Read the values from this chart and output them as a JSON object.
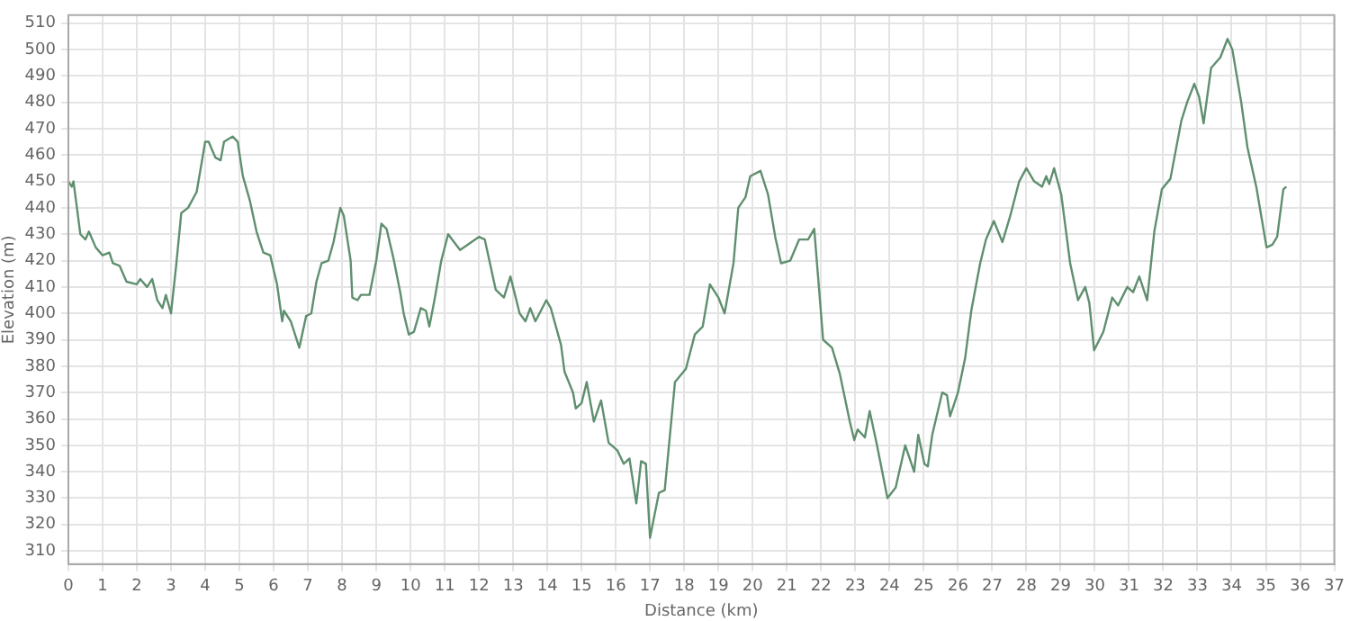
{
  "chart_data": {
    "type": "line",
    "xlabel": "Distance (km)",
    "ylabel": "Elevation (m)",
    "xlim": [
      0,
      37
    ],
    "xticks": [
      0,
      1,
      2,
      3,
      4,
      5,
      6,
      7,
      8,
      9,
      10,
      11,
      12,
      13,
      14,
      15,
      16,
      17,
      18,
      19,
      20,
      21,
      22,
      23,
      24,
      25,
      26,
      27,
      28,
      29,
      30,
      31,
      32,
      33,
      34,
      35,
      36,
      37
    ],
    "ylim": [
      305,
      513
    ],
    "yticks": [
      310,
      320,
      330,
      340,
      350,
      360,
      370,
      380,
      390,
      400,
      410,
      420,
      430,
      440,
      450,
      460,
      470,
      480,
      490,
      500,
      510
    ],
    "grid": true,
    "legend": false,
    "marker": "none",
    "line_style": "solid",
    "series": [
      {
        "color": "#5f8f6f",
        "x": [
          0,
          0.1,
          0.15,
          0.25,
          0.35,
          0.5,
          0.6,
          0.8,
          1.0,
          1.2,
          1.3,
          1.5,
          1.7,
          2.0,
          2.1,
          2.3,
          2.45,
          2.6,
          2.75,
          2.85,
          3.0,
          3.15,
          3.3,
          3.5,
          3.75,
          4.0,
          4.1,
          4.3,
          4.45,
          4.55,
          4.8,
          4.95,
          5.1,
          5.3,
          5.5,
          5.7,
          5.9,
          6.1,
          6.25,
          6.3,
          6.5,
          6.75,
          6.95,
          7.1,
          7.25,
          7.4,
          7.6,
          7.75,
          7.95,
          8.05,
          8.25,
          8.3,
          8.45,
          8.55,
          8.8,
          9.0,
          9.15,
          9.3,
          9.5,
          9.7,
          9.8,
          9.95,
          10.1,
          10.3,
          10.45,
          10.55,
          10.7,
          10.9,
          11.1,
          11.45,
          12.0,
          12.17,
          12.49,
          12.73,
          12.92,
          13.19,
          13.36,
          13.5,
          13.65,
          13.97,
          14.1,
          14.4,
          14.5,
          14.75,
          14.83,
          15.0,
          15.15,
          15.36,
          15.57,
          15.79,
          16.05,
          16.23,
          16.4,
          16.6,
          16.74,
          16.88,
          17.0,
          17.26,
          17.43,
          17.73,
          18.05,
          18.31,
          18.54,
          18.75,
          19.0,
          19.18,
          19.44,
          19.58,
          19.79,
          19.93,
          20.23,
          20.45,
          20.66,
          20.83,
          21.1,
          21.36,
          21.62,
          21.8,
          22.06,
          22.32,
          22.55,
          22.84,
          22.97,
          23.07,
          23.28,
          23.42,
          23.62,
          23.94,
          24.18,
          24.46,
          24.72,
          24.84,
          25.02,
          25.12,
          25.25,
          25.54,
          25.68,
          25.77,
          26.0,
          26.21,
          26.39,
          26.65,
          26.82,
          27.05,
          27.3,
          27.53,
          27.79,
          28.0,
          28.23,
          28.46,
          28.58,
          28.67,
          28.81,
          29.02,
          29.28,
          29.51,
          29.72,
          29.84,
          29.98,
          30.25,
          30.51,
          30.68,
          30.95,
          31.12,
          31.3,
          31.53,
          31.74,
          31.96,
          32.21,
          32.53,
          32.7,
          32.91,
          33.05,
          33.18,
          33.4,
          33.67,
          33.88,
          34.02,
          34.28,
          34.46,
          34.72,
          34.89,
          35.02,
          35.19,
          35.33,
          35.51,
          35.6
        ],
        "values": [
          450,
          448,
          450,
          440,
          430,
          428,
          431,
          425,
          422,
          423,
          419,
          418,
          412,
          411,
          413,
          410,
          413,
          405,
          402,
          407,
          400,
          418,
          438,
          440,
          446,
          465,
          465,
          459,
          458,
          465,
          467,
          465,
          452,
          443,
          431,
          423,
          422,
          411,
          397,
          401,
          397,
          387,
          399,
          400,
          412,
          419,
          420,
          427,
          440,
          437,
          420,
          406,
          405,
          407,
          407,
          420,
          434,
          432,
          421,
          408,
          400,
          392,
          393,
          402,
          401,
          395,
          405,
          420,
          430,
          424,
          429,
          428,
          409,
          406,
          414,
          400,
          397,
          402,
          397,
          405,
          402,
          388,
          378,
          370,
          364,
          366,
          374,
          359,
          367,
          351,
          348,
          343,
          345,
          328,
          344,
          343,
          315,
          332,
          333,
          374,
          379,
          392,
          395,
          411,
          406,
          400,
          419,
          440,
          444,
          452,
          454,
          445,
          429,
          419,
          420,
          428,
          428,
          432,
          390,
          387,
          377,
          359,
          352,
          356,
          353,
          363,
          351,
          330,
          334,
          350,
          340,
          354,
          343,
          342,
          354,
          370,
          369,
          361,
          370,
          383,
          401,
          419,
          428,
          435,
          427,
          437,
          450,
          455,
          450,
          448,
          452,
          449,
          455,
          445,
          419,
          405,
          410,
          404,
          386,
          393,
          406,
          403,
          410,
          408,
          414,
          405,
          431,
          447,
          451,
          473,
          480,
          487,
          482,
          472,
          493,
          497,
          504,
          500,
          480,
          463,
          448,
          435,
          425,
          426,
          429,
          447,
          448
        ]
      }
    ]
  }
}
